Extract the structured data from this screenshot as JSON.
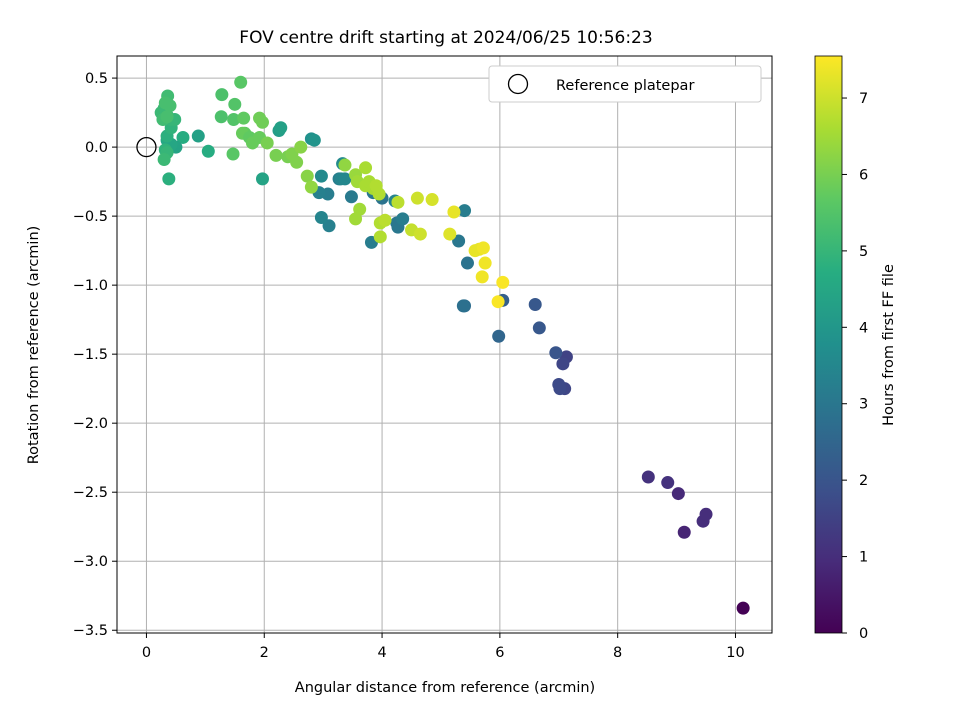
{
  "chart_data": {
    "type": "scatter",
    "title": "FOV centre drift starting at 2024/06/25 10:56:23",
    "xlabel": "Angular distance from reference (arcmin)",
    "ylabel": "Rotation from reference (arcmin)",
    "xlim": [
      -0.5,
      10.62
    ],
    "ylim": [
      -3.52,
      0.66
    ],
    "xticks": [
      {
        "value": 0,
        "label": "0"
      },
      {
        "value": 2,
        "label": "2"
      },
      {
        "value": 4,
        "label": "4"
      },
      {
        "value": 6,
        "label": "6"
      },
      {
        "value": 8,
        "label": "8"
      },
      {
        "value": 10,
        "label": "10"
      }
    ],
    "yticks": [
      {
        "value": 0.5,
        "label": "0.5"
      },
      {
        "value": 0.0,
        "label": "0.0"
      },
      {
        "value": -0.5,
        "label": "−0.5"
      },
      {
        "value": -1.0,
        "label": "−1.0"
      },
      {
        "value": -1.5,
        "label": "−1.5"
      },
      {
        "value": -2.0,
        "label": "−2.0"
      },
      {
        "value": -2.5,
        "label": "−2.5"
      },
      {
        "value": -3.0,
        "label": "−3.0"
      },
      {
        "value": -3.5,
        "label": "−3.5"
      }
    ],
    "grid": true,
    "legend": {
      "position": "top-right",
      "entries": [
        {
          "label": "Reference platepar",
          "marker": "open-circle"
        }
      ]
    },
    "reference_point": {
      "x": 0,
      "y": 0
    },
    "colorbar": {
      "label": "Hours from first FF file",
      "colormap": "viridis",
      "range": [
        0,
        7.55
      ],
      "ticks": [
        {
          "value": 0,
          "label": "0"
        },
        {
          "value": 1,
          "label": "1"
        },
        {
          "value": 2,
          "label": "2"
        },
        {
          "value": 3,
          "label": "3"
        },
        {
          "value": 4,
          "label": "4"
        },
        {
          "value": 5,
          "label": "5"
        },
        {
          "value": 6,
          "label": "6"
        },
        {
          "value": 7,
          "label": "7"
        }
      ]
    },
    "points": [
      {
        "x": 10.13,
        "y": -3.34,
        "c": 0.02
      },
      {
        "x": 9.45,
        "y": -2.71,
        "c": 1.0
      },
      {
        "x": 9.5,
        "y": -2.66,
        "c": 1.0
      },
      {
        "x": 9.13,
        "y": -2.79,
        "c": 0.8
      },
      {
        "x": 9.03,
        "y": -2.51,
        "c": 0.9
      },
      {
        "x": 8.85,
        "y": -2.43,
        "c": 1.1
      },
      {
        "x": 8.52,
        "y": -2.39,
        "c": 1.1
      },
      {
        "x": 7.13,
        "y": -1.52,
        "c": 1.5
      },
      {
        "x": 7.07,
        "y": -1.57,
        "c": 1.6
      },
      {
        "x": 7.1,
        "y": -1.75,
        "c": 1.6
      },
      {
        "x": 7.0,
        "y": -1.72,
        "c": 1.7
      },
      {
        "x": 7.02,
        "y": -1.75,
        "c": 1.7
      },
      {
        "x": 6.95,
        "y": -1.49,
        "c": 2.0
      },
      {
        "x": 6.67,
        "y": -1.31,
        "c": 2.1
      },
      {
        "x": 6.6,
        "y": -1.14,
        "c": 2.1
      },
      {
        "x": 6.05,
        "y": -1.11,
        "c": 2.3
      },
      {
        "x": 5.98,
        "y": -1.37,
        "c": 2.5
      },
      {
        "x": 5.4,
        "y": -1.15,
        "c": 2.7
      },
      {
        "x": 5.38,
        "y": -1.15,
        "c": 2.8
      },
      {
        "x": 5.45,
        "y": -0.84,
        "c": 2.9
      },
      {
        "x": 5.3,
        "y": -0.68,
        "c": 3.0
      },
      {
        "x": 5.4,
        "y": -0.46,
        "c": 3.2
      },
      {
        "x": 4.25,
        "y": -0.55,
        "c": 3.0
      },
      {
        "x": 4.27,
        "y": -0.58,
        "c": 3.0
      },
      {
        "x": 4.35,
        "y": -0.52,
        "c": 3.2
      },
      {
        "x": 4.22,
        "y": -0.39,
        "c": 3.4
      },
      {
        "x": 4.0,
        "y": -0.37,
        "c": 2.9
      },
      {
        "x": 3.85,
        "y": -0.33,
        "c": 3.0
      },
      {
        "x": 3.82,
        "y": -0.69,
        "c": 3.2
      },
      {
        "x": 3.48,
        "y": -0.36,
        "c": 3.1
      },
      {
        "x": 3.1,
        "y": -0.57,
        "c": 3.3
      },
      {
        "x": 2.97,
        "y": -0.51,
        "c": 3.4
      },
      {
        "x": 3.08,
        "y": -0.34,
        "c": 3.2
      },
      {
        "x": 2.93,
        "y": -0.33,
        "c": 3.3
      },
      {
        "x": 2.97,
        "y": -0.21,
        "c": 3.6
      },
      {
        "x": 3.27,
        "y": -0.23,
        "c": 3.2
      },
      {
        "x": 3.3,
        "y": -0.23,
        "c": 3.4
      },
      {
        "x": 3.37,
        "y": -0.23,
        "c": 3.5
      },
      {
        "x": 3.33,
        "y": -0.12,
        "c": 3.6
      },
      {
        "x": 2.8,
        "y": 0.06,
        "c": 3.8
      },
      {
        "x": 2.85,
        "y": 0.05,
        "c": 3.9
      },
      {
        "x": 2.25,
        "y": 0.12,
        "c": 4.2
      },
      {
        "x": 2.28,
        "y": 0.14,
        "c": 4.3
      },
      {
        "x": 1.97,
        "y": -0.23,
        "c": 4.4
      },
      {
        "x": 0.88,
        "y": 0.08,
        "c": 4.3
      },
      {
        "x": 1.05,
        "y": -0.03,
        "c": 4.7
      },
      {
        "x": 0.62,
        "y": 0.07,
        "c": 4.7
      },
      {
        "x": 0.5,
        "y": 0.0,
        "c": 4.4
      },
      {
        "x": 0.42,
        "y": 0.02,
        "c": 4.5
      },
      {
        "x": 0.35,
        "y": 0.05,
        "c": 4.5
      },
      {
        "x": 0.38,
        "y": -0.23,
        "c": 4.8
      },
      {
        "x": 0.32,
        "y": -0.02,
        "c": 4.9
      },
      {
        "x": 0.35,
        "y": 0.08,
        "c": 4.8
      },
      {
        "x": 0.35,
        "y": -0.04,
        "c": 5.0
      },
      {
        "x": 0.3,
        "y": -0.09,
        "c": 5.1
      },
      {
        "x": 0.42,
        "y": 0.14,
        "c": 4.9
      },
      {
        "x": 0.35,
        "y": 0.23,
        "c": 5.0
      },
      {
        "x": 0.42,
        "y": 0.2,
        "c": 5.0
      },
      {
        "x": 0.48,
        "y": 0.2,
        "c": 5.0
      },
      {
        "x": 0.25,
        "y": 0.25,
        "c": 5.1
      },
      {
        "x": 0.3,
        "y": 0.28,
        "c": 5.1
      },
      {
        "x": 0.28,
        "y": 0.2,
        "c": 5.2
      },
      {
        "x": 0.36,
        "y": 0.37,
        "c": 5.2
      },
      {
        "x": 0.4,
        "y": 0.3,
        "c": 5.3
      },
      {
        "x": 0.35,
        "y": 0.22,
        "c": 5.3
      },
      {
        "x": 0.32,
        "y": 0.32,
        "c": 5.3
      },
      {
        "x": 1.28,
        "y": 0.38,
        "c": 5.4
      },
      {
        "x": 1.27,
        "y": 0.22,
        "c": 5.4
      },
      {
        "x": 1.5,
        "y": 0.31,
        "c": 5.5
      },
      {
        "x": 1.48,
        "y": 0.2,
        "c": 5.5
      },
      {
        "x": 1.47,
        "y": -0.05,
        "c": 5.6
      },
      {
        "x": 1.6,
        "y": 0.47,
        "c": 5.6
      },
      {
        "x": 1.65,
        "y": 0.21,
        "c": 5.7
      },
      {
        "x": 1.67,
        "y": 0.1,
        "c": 5.7
      },
      {
        "x": 1.63,
        "y": 0.1,
        "c": 5.8
      },
      {
        "x": 1.75,
        "y": 0.07,
        "c": 5.7
      },
      {
        "x": 1.8,
        "y": 0.03,
        "c": 5.8
      },
      {
        "x": 1.92,
        "y": 0.07,
        "c": 5.8
      },
      {
        "x": 1.97,
        "y": 0.18,
        "c": 5.9
      },
      {
        "x": 1.92,
        "y": 0.21,
        "c": 5.9
      },
      {
        "x": 2.05,
        "y": 0.03,
        "c": 6.0
      },
      {
        "x": 2.2,
        "y": -0.06,
        "c": 6.0
      },
      {
        "x": 2.4,
        "y": -0.07,
        "c": 6.0
      },
      {
        "x": 2.47,
        "y": -0.05,
        "c": 6.1
      },
      {
        "x": 2.55,
        "y": -0.11,
        "c": 6.1
      },
      {
        "x": 2.62,
        "y": 0.0,
        "c": 6.2
      },
      {
        "x": 2.73,
        "y": -0.21,
        "c": 6.2
      },
      {
        "x": 2.8,
        "y": -0.29,
        "c": 6.3
      },
      {
        "x": 3.37,
        "y": -0.13,
        "c": 6.3
      },
      {
        "x": 3.55,
        "y": -0.2,
        "c": 6.4
      },
      {
        "x": 3.58,
        "y": -0.25,
        "c": 6.5
      },
      {
        "x": 3.62,
        "y": -0.45,
        "c": 6.5
      },
      {
        "x": 3.55,
        "y": -0.52,
        "c": 6.5
      },
      {
        "x": 3.72,
        "y": -0.15,
        "c": 6.6
      },
      {
        "x": 3.72,
        "y": -0.28,
        "c": 6.6
      },
      {
        "x": 3.78,
        "y": -0.25,
        "c": 6.6
      },
      {
        "x": 3.85,
        "y": -0.3,
        "c": 6.6
      },
      {
        "x": 3.9,
        "y": -0.28,
        "c": 6.7
      },
      {
        "x": 3.95,
        "y": -0.34,
        "c": 6.7
      },
      {
        "x": 3.97,
        "y": -0.55,
        "c": 6.7
      },
      {
        "x": 4.05,
        "y": -0.53,
        "c": 6.8
      },
      {
        "x": 3.97,
        "y": -0.65,
        "c": 6.7
      },
      {
        "x": 4.27,
        "y": -0.4,
        "c": 6.8
      },
      {
        "x": 4.5,
        "y": -0.6,
        "c": 6.9
      },
      {
        "x": 4.6,
        "y": -0.37,
        "c": 7.0
      },
      {
        "x": 4.65,
        "y": -0.63,
        "c": 7.0
      },
      {
        "x": 4.85,
        "y": -0.38,
        "c": 7.1
      },
      {
        "x": 5.15,
        "y": -0.63,
        "c": 7.2
      },
      {
        "x": 5.22,
        "y": -0.47,
        "c": 7.3
      },
      {
        "x": 5.58,
        "y": -0.75,
        "c": 7.3
      },
      {
        "x": 5.65,
        "y": -0.74,
        "c": 7.3
      },
      {
        "x": 5.72,
        "y": -0.73,
        "c": 7.4
      },
      {
        "x": 5.75,
        "y": -0.84,
        "c": 7.4
      },
      {
        "x": 5.7,
        "y": -0.94,
        "c": 7.4
      },
      {
        "x": 6.05,
        "y": -0.98,
        "c": 7.5
      },
      {
        "x": 5.97,
        "y": -1.12,
        "c": 7.5
      }
    ]
  }
}
